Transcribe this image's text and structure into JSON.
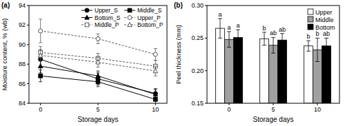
{
  "chart_data": [
    {
      "type": "line",
      "panel": "(a)",
      "x_label": "Storage days",
      "y_label": "Moisture content, % (wb)",
      "x": [
        0,
        5,
        10
      ],
      "xlim": [
        -1,
        11
      ],
      "xticks": [
        0,
        5,
        10
      ],
      "ylim": [
        84,
        94
      ],
      "yticks": [
        84,
        86,
        88,
        90,
        92,
        94
      ],
      "legend": "upper right",
      "series": [
        {
          "name": "Upper_S",
          "color": "#000000",
          "marker": "circle",
          "line_style": "solid",
          "values": [
            88.5,
            86.5,
            85.0
          ],
          "errors": [
            0.8,
            0.6,
            0.5
          ]
        },
        {
          "name": "Middle_S",
          "color": "#000000",
          "marker": "square",
          "line_style": "solid",
          "values": [
            86.8,
            86.2,
            84.4
          ],
          "errors": [
            0.6,
            0.5,
            0.6
          ]
        },
        {
          "name": "Bottom_S",
          "color": "#000000",
          "marker": "triangle",
          "line_style": "solid",
          "values": [
            87.8,
            86.8,
            84.9
          ],
          "errors": [
            0.7,
            0.5,
            0.5
          ]
        },
        {
          "name": "Upper_P",
          "color": "#555555",
          "marker": "circle-open",
          "line_style": "dashed",
          "values": [
            91.4,
            90.6,
            89.0
          ],
          "errors": [
            1.2,
            0.5,
            0.6
          ]
        },
        {
          "name": "Middle_P",
          "color": "#555555",
          "marker": "square-open",
          "line_style": "dashed",
          "values": [
            89.2,
            88.6,
            87.8
          ],
          "errors": [
            0.6,
            0.5,
            0.6
          ]
        },
        {
          "name": "Bottom_P",
          "color": "#555555",
          "marker": "triangle-open",
          "line_style": "dashed",
          "values": [
            88.9,
            88.2,
            87.3
          ],
          "errors": [
            0.6,
            0.5,
            0.5
          ]
        }
      ]
    },
    {
      "type": "bar",
      "panel": "(b)",
      "x_label": "Storage days",
      "y_label": "Peel thickness (mm)",
      "categories": [
        "0",
        "5",
        "10"
      ],
      "ylim": [
        0.15,
        0.3
      ],
      "yticks": [
        0.15,
        {
          "value": 0.2,
          "label": "0.20"
        },
        0.25,
        {
          "value": 0.3,
          "label": "0.30"
        }
      ],
      "legend": "upper right",
      "series": [
        {
          "name": "Upper",
          "color": "#ffffff",
          "values": [
            0.265,
            0.249,
            0.238
          ],
          "errors": [
            0.015,
            0.01,
            0.008
          ],
          "letters": [
            "a",
            "b",
            "b"
          ]
        },
        {
          "name": "Middle",
          "color": "#a0a0a0",
          "values": [
            0.248,
            0.239,
            0.232
          ],
          "errors": [
            0.012,
            0.012,
            0.018
          ],
          "letters": [
            "a",
            "ab",
            "b"
          ]
        },
        {
          "name": "Bottom",
          "color": "#000000",
          "values": [
            0.251,
            0.247,
            0.238
          ],
          "errors": [
            0.012,
            0.01,
            0.012
          ],
          "letters": [
            "a",
            "ab",
            "ab"
          ]
        }
      ]
    }
  ]
}
